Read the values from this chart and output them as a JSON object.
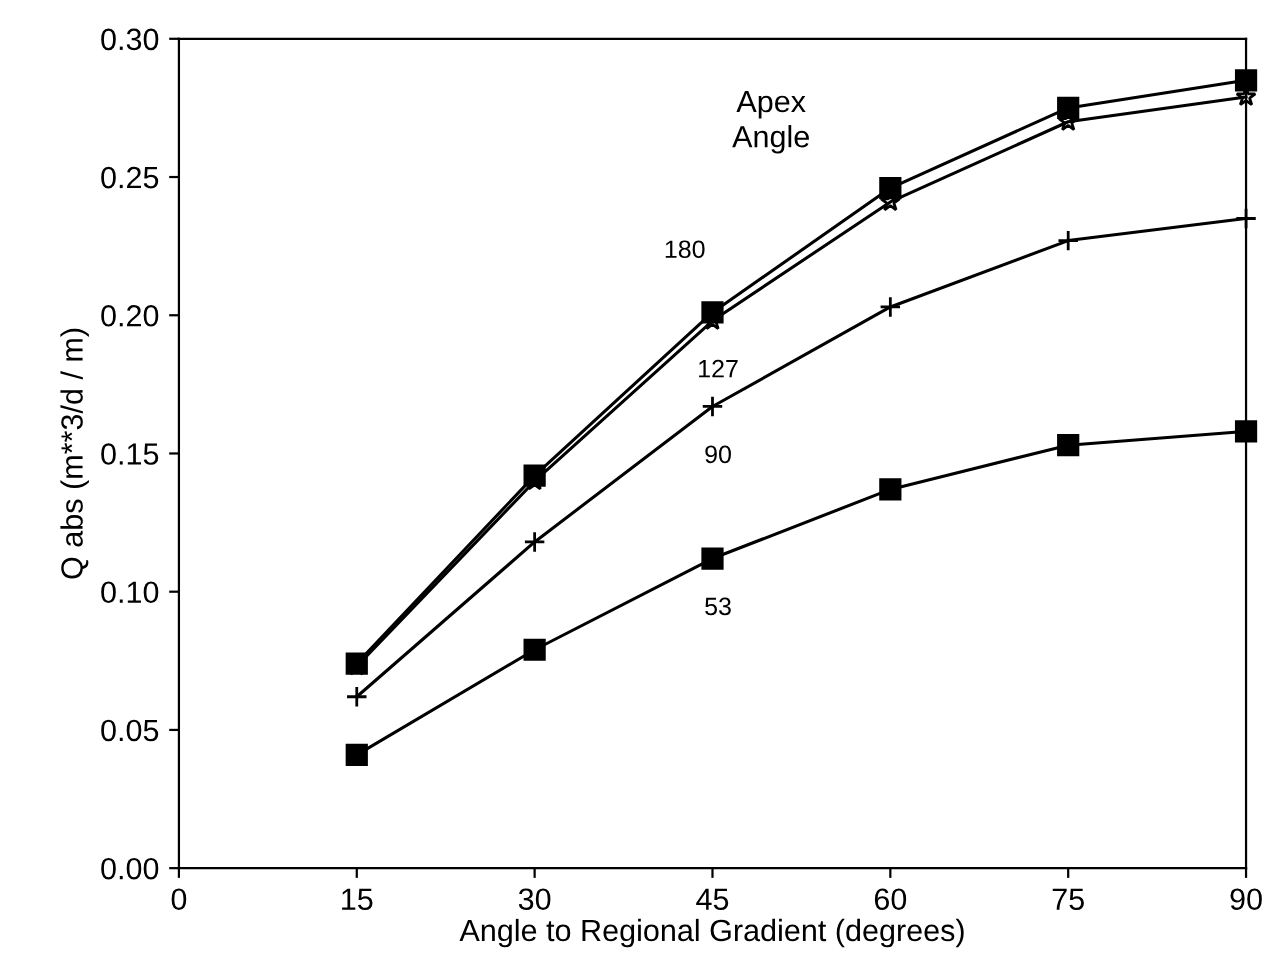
{
  "chart_data": {
    "type": "line",
    "xlabel": "Angle to Regional Gradient (degrees)",
    "ylabel": "Q abs (m**3/d / m)",
    "x": [
      15,
      30,
      45,
      60,
      75,
      90
    ],
    "series": [
      {
        "name": "180",
        "color": "#000000",
        "marker": "square",
        "values": [
          0.074,
          0.142,
          0.201,
          0.246,
          0.275,
          0.285
        ]
      },
      {
        "name": "127",
        "color": "#000000",
        "marker": "star",
        "values": [
          0.073,
          0.14,
          0.198,
          0.241,
          0.27,
          0.279
        ]
      },
      {
        "name": "90",
        "color": "#000000",
        "marker": "cross",
        "values": [
          0.062,
          0.118,
          0.167,
          0.203,
          0.227,
          0.235
        ]
      },
      {
        "name": "53",
        "color": "#000000",
        "marker": "square",
        "values": [
          0.041,
          0.079,
          0.112,
          0.137,
          0.153,
          0.158
        ]
      }
    ],
    "annotations": [
      "Apex\nAngle"
    ],
    "xlim": [
      0,
      90
    ],
    "xticks": [
      0,
      15,
      30,
      45,
      60,
      75,
      90
    ],
    "ylim": [
      0,
      0.3
    ],
    "yticks": [
      {
        "value": 0,
        "label": "0.00"
      },
      {
        "value": 0.05,
        "label": "0.05"
      },
      {
        "value": 0.1,
        "label": "0.10"
      },
      {
        "value": 0.15,
        "label": "0.15"
      },
      {
        "value": 0.2,
        "label": "0.20"
      },
      {
        "value": 0.25,
        "label": "0.25"
      },
      {
        "value": 0.3,
        "label": "0.30"
      }
    ],
    "grid": false,
    "legend": false
  }
}
